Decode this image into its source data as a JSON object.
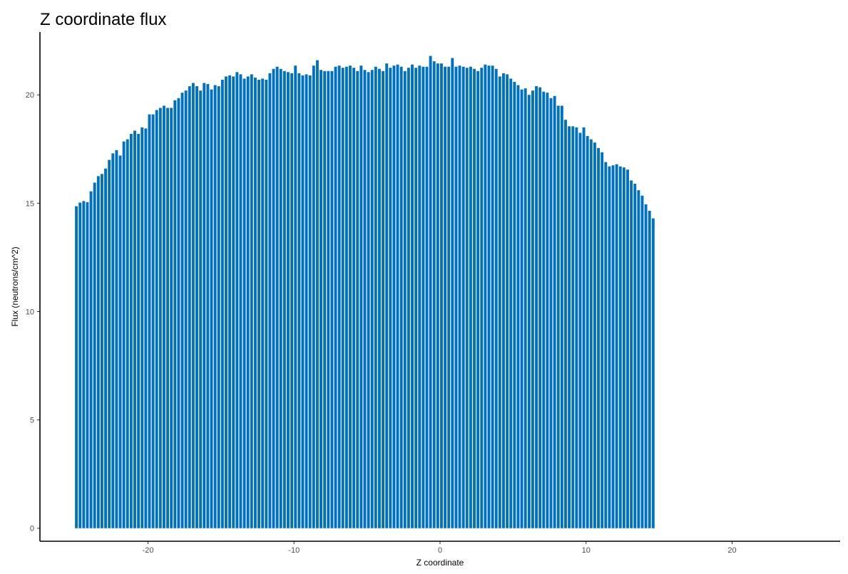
{
  "chart_data": {
    "type": "bar",
    "title": "Z coordinate flux",
    "xlabel": "Z coordinate",
    "ylabel": "Flux (neutrons/cm^2)",
    "xlim": [
      -27.4,
      27.4
    ],
    "ylim": [
      -0.6,
      22.9
    ],
    "x_ticks": [
      -20,
      -10,
      0,
      10,
      20
    ],
    "y_ticks": [
      0,
      5,
      10,
      15,
      20
    ],
    "grid": false,
    "bar_color": "#0070C0",
    "bin_width": 0.25,
    "bin_start": -25,
    "values": [
      14.86,
      15.03,
      15.1,
      15.05,
      15.55,
      15.95,
      16.25,
      16.35,
      16.6,
      17.0,
      17.3,
      17.45,
      17.2,
      17.85,
      17.95,
      18.2,
      18.35,
      18.2,
      18.5,
      18.45,
      19.1,
      19.1,
      19.3,
      19.4,
      19.5,
      19.4,
      19.4,
      19.75,
      19.85,
      20.1,
      20.2,
      20.4,
      20.55,
      20.4,
      20.2,
      20.55,
      20.5,
      20.25,
      20.45,
      20.4,
      20.7,
      20.85,
      20.9,
      20.85,
      21.05,
      20.95,
      20.75,
      20.85,
      20.95,
      20.8,
      20.7,
      20.75,
      20.7,
      21.0,
      21.2,
      21.3,
      21.2,
      21.1,
      21.05,
      21.0,
      21.35,
      21.0,
      20.9,
      20.95,
      20.9,
      21.35,
      21.6,
      21.15,
      21.1,
      21.1,
      21.1,
      21.3,
      21.35,
      21.25,
      21.3,
      21.35,
      21.25,
      21.1,
      21.35,
      21.15,
      21.05,
      21.15,
      21.3,
      21.2,
      21.1,
      21.45,
      21.25,
      21.35,
      21.4,
      21.3,
      21.1,
      21.25,
      21.4,
      21.25,
      21.35,
      21.3,
      21.3,
      21.8,
      21.55,
      21.45,
      21.45,
      21.3,
      21.3,
      21.7,
      21.3,
      21.35,
      21.3,
      21.25,
      21.3,
      21.2,
      21.1,
      21.25,
      21.4,
      21.35,
      21.35,
      21.2,
      20.85,
      21.0,
      20.95,
      20.75,
      20.6,
      20.45,
      20.25,
      20.3,
      20.0,
      20.2,
      20.4,
      20.35,
      20.15,
      20.1,
      19.85,
      19.95,
      19.5,
      19.5,
      18.85,
      18.55,
      18.55,
      18.5,
      18.25,
      18.5,
      18.1,
      17.95,
      17.8,
      17.55,
      17.35,
      16.9,
      16.7,
      16.75,
      16.8,
      16.7,
      16.65,
      16.55,
      16.05,
      15.9,
      15.6,
      15.35,
      14.95,
      14.65,
      14.3
    ]
  }
}
